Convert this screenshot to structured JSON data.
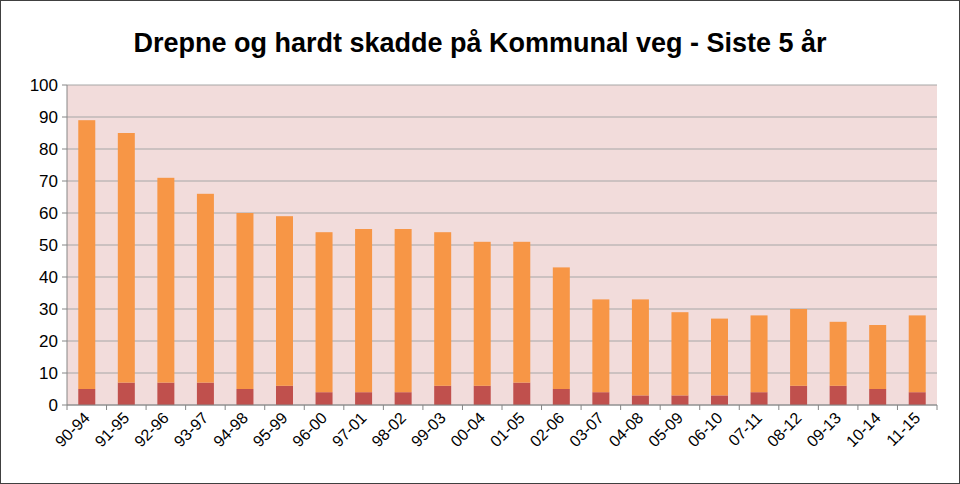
{
  "chart_data": {
    "type": "bar",
    "title": "Drepne og hardt skadde på Kommunal veg - Siste 5 år",
    "stacked": true,
    "grid": true,
    "categories": [
      "90-94",
      "91-95",
      "92-96",
      "93-97",
      "94-98",
      "95-99",
      "96-00",
      "97-01",
      "98-02",
      "99-03",
      "00-04",
      "01-05",
      "02-06",
      "03-07",
      "04-08",
      "05-09",
      "06-10",
      "07-11",
      "08-12",
      "09-13",
      "10-14",
      "11-15"
    ],
    "series": [
      {
        "color": "#c0504d",
        "values": [
          5,
          7,
          7,
          7,
          5,
          6,
          4,
          4,
          4,
          6,
          6,
          7,
          5,
          4,
          3,
          3,
          3,
          4,
          6,
          6,
          5,
          4
        ]
      },
      {
        "color": "#f79646",
        "values": [
          84,
          78,
          64,
          59,
          55,
          53,
          50,
          51,
          51,
          48,
          45,
          44,
          38,
          29,
          30,
          26,
          24,
          24,
          24,
          20,
          20,
          24
        ]
      }
    ],
    "ylim": [
      0,
      100
    ],
    "yticks": [
      0,
      10,
      20,
      30,
      40,
      50,
      60,
      70,
      80,
      90,
      100
    ]
  }
}
